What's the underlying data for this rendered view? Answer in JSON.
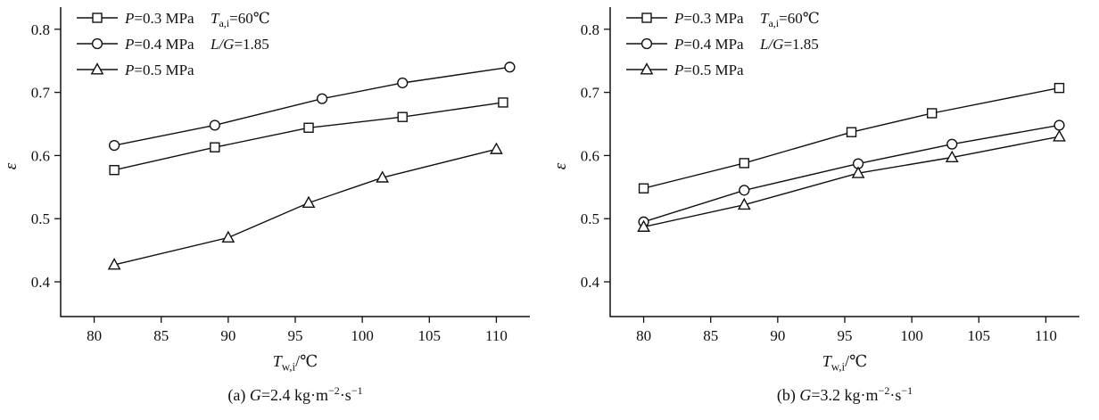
{
  "figure": {
    "background": "#ffffff",
    "ink": "#111111",
    "marker_fill": "#ffffff"
  },
  "chart_data": [
    {
      "id": "chart-a",
      "type": "line",
      "title": "",
      "caption_text": "(a) G=2.4 kg·m⁻²·s⁻¹",
      "caption_parts": [
        {
          "t": "(a) "
        },
        {
          "t": "G",
          "style": "i"
        },
        {
          "t": "=2.4 kg·m"
        },
        {
          "t": "−2",
          "style": "sup"
        },
        {
          "t": "·s"
        },
        {
          "t": "−1",
          "style": "sup"
        }
      ],
      "xlabel": {
        "v": "T",
        "s": "w,i",
        "r": "/℃"
      },
      "ylabel": "ε",
      "xlim": [
        77.5,
        112.5
      ],
      "ylim": [
        0.345,
        0.835
      ],
      "xticks": [
        80,
        85,
        90,
        95,
        100,
        105,
        110
      ],
      "yticks": [
        0.4,
        0.5,
        0.6,
        0.7,
        0.8
      ],
      "grid": false,
      "legend_position": "top-left",
      "annotations": [
        {
          "v": "T",
          "s": "a,i",
          "r": "=60℃"
        },
        {
          "v": "L/G",
          "r": "=1.85"
        }
      ],
      "series": [
        {
          "name": "P=0.3 MPa",
          "label": {
            "v": "P",
            "r": "=0.3 MPa"
          },
          "marker": "square",
          "x": [
            81.5,
            89,
            96,
            103,
            110.5
          ],
          "y": [
            0.577,
            0.613,
            0.644,
            0.661,
            0.684
          ]
        },
        {
          "name": "P=0.4 MPa",
          "label": {
            "v": "P",
            "r": "=0.4 MPa"
          },
          "marker": "circle",
          "x": [
            81.5,
            89,
            97,
            103,
            111
          ],
          "y": [
            0.616,
            0.648,
            0.69,
            0.715,
            0.74
          ]
        },
        {
          "name": "P=0.5 MPa",
          "label": {
            "v": "P",
            "r": "=0.5 MPa"
          },
          "marker": "triangle",
          "x": [
            81.5,
            90,
            96,
            101.5,
            110
          ],
          "y": [
            0.427,
            0.47,
            0.525,
            0.565,
            0.61
          ]
        }
      ]
    },
    {
      "id": "chart-b",
      "type": "line",
      "title": "",
      "caption_text": "(b) G=3.2 kg·m⁻²·s⁻¹",
      "caption_parts": [
        {
          "t": "(b) "
        },
        {
          "t": "G",
          "style": "i"
        },
        {
          "t": "=3.2 kg·m"
        },
        {
          "t": "−2",
          "style": "sup"
        },
        {
          "t": "·s"
        },
        {
          "t": "−1",
          "style": "sup"
        }
      ],
      "xlabel": {
        "v": "T",
        "s": "w,i",
        "r": "/℃"
      },
      "ylabel": "ε",
      "xlim": [
        77.5,
        112.5
      ],
      "ylim": [
        0.345,
        0.835
      ],
      "xticks": [
        80,
        85,
        90,
        95,
        100,
        105,
        110
      ],
      "yticks": [
        0.4,
        0.5,
        0.6,
        0.7,
        0.8
      ],
      "grid": false,
      "legend_position": "top-left",
      "annotations": [
        {
          "v": "T",
          "s": "a,i",
          "r": "=60℃"
        },
        {
          "v": "L/G",
          "r": "=1.85"
        }
      ],
      "series": [
        {
          "name": "P=0.3 MPa",
          "label": {
            "v": "P",
            "r": "=0.3 MPa"
          },
          "marker": "square",
          "x": [
            80,
            87.5,
            95.5,
            101.5,
            111
          ],
          "y": [
            0.548,
            0.588,
            0.637,
            0.667,
            0.707
          ]
        },
        {
          "name": "P=0.4 MPa",
          "label": {
            "v": "P",
            "r": "=0.4 MPa"
          },
          "marker": "circle",
          "x": [
            80,
            87.5,
            96,
            103,
            111
          ],
          "y": [
            0.495,
            0.545,
            0.587,
            0.618,
            0.648
          ]
        },
        {
          "name": "P=0.5 MPa",
          "label": {
            "v": "P",
            "r": "=0.5 MPa"
          },
          "marker": "triangle",
          "x": [
            80,
            87.5,
            96,
            103,
            111
          ],
          "y": [
            0.487,
            0.522,
            0.572,
            0.597,
            0.63
          ]
        }
      ]
    }
  ]
}
